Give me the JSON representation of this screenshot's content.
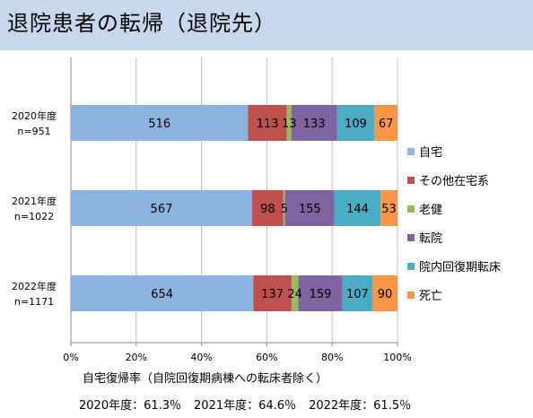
{
  "header": {
    "title": "退院患者の転帰（退院先）"
  },
  "chart_data": {
    "type": "bar",
    "orientation": "horizontal",
    "stacked": "percent",
    "categories": [
      [
        "2020年度",
        "n=951"
      ],
      [
        "2021年度",
        "n=1022"
      ],
      [
        "2022年度",
        "n=1171"
      ]
    ],
    "series": [
      {
        "name": "自宅",
        "color": "#8db3e2",
        "values": [
          516,
          567,
          654
        ]
      },
      {
        "name": "その他在宅系",
        "color": "#c0504d",
        "values": [
          113,
          98,
          137
        ]
      },
      {
        "name": "老健",
        "color": "#9bbb59",
        "values": [
          13,
          5,
          24
        ]
      },
      {
        "name": "転院",
        "color": "#8064a2",
        "values": [
          133,
          155,
          159
        ]
      },
      {
        "name": "院内回復期転床",
        "color": "#4bacc6",
        "values": [
          109,
          144,
          107
        ]
      },
      {
        "name": "死亡",
        "color": "#f79646",
        "values": [
          67,
          53,
          90
        ]
      }
    ],
    "x_ticks": [
      "0%",
      "20%",
      "40%",
      "60%",
      "80%",
      "100%"
    ],
    "xlim": [
      0,
      100
    ],
    "grid": true,
    "legend_position": "right"
  },
  "notes": {
    "line1": "自宅復帰率（自院回復期病棟への転床者除く）",
    "rates": [
      "2020年度：61.3％",
      "2021年度：64.6％",
      "2022年度：61.5％"
    ]
  }
}
